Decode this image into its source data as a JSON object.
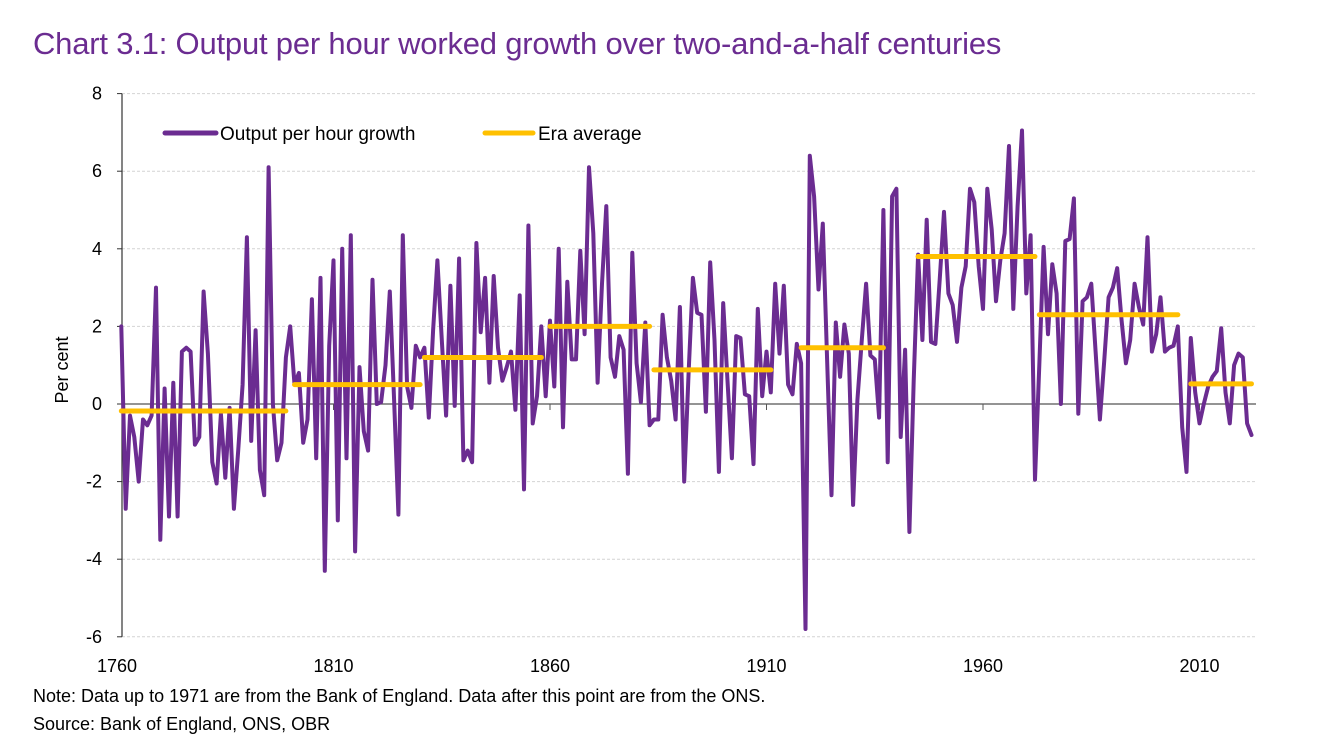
{
  "title": "Chart 3.1: Output per hour worked growth over two-and-a-half centuries",
  "note": "Note: Data up to 1971 are from the Bank of England. Data after this point are from the ONS.",
  "source": "Source: Bank of England, ONS, OBR",
  "colors": {
    "series": "#6B2C91",
    "era": "#FFC000",
    "title": "#6B2C91"
  },
  "chart_data": {
    "type": "line",
    "title": "Chart 3.1: Output per hour worked growth over two-and-a-half centuries",
    "xlabel": "",
    "ylabel": "Per cent",
    "xlim": [
      1760,
      2023
    ],
    "ylim": [
      -6,
      8
    ],
    "xticks": [
      "1760",
      "1810",
      "1860",
      "1910",
      "1960",
      "2010"
    ],
    "yticks": [
      "-6",
      "-4",
      "-2",
      "0",
      "2",
      "4",
      "6",
      "8"
    ],
    "grid": "horizontal dashed",
    "legend_position": "top-left",
    "legend": [
      "Output per hour growth",
      "Era average"
    ],
    "series": [
      {
        "name": "Output per hour growth",
        "start_year": 1761,
        "values": [
          2.0,
          -2.7,
          -0.3,
          -0.85,
          -2.0,
          -0.4,
          -0.55,
          -0.3,
          3.0,
          -3.5,
          0.4,
          -2.9,
          0.55,
          -2.9,
          1.35,
          1.45,
          1.35,
          -1.05,
          -0.85,
          2.9,
          1.3,
          -1.5,
          -2.05,
          -0.25,
          -1.9,
          -0.1,
          -2.7,
          -1.2,
          0.5,
          4.3,
          -0.95,
          1.9,
          -1.7,
          -2.35,
          6.1,
          0.0,
          -1.45,
          -1.0,
          1.2,
          2.0,
          0.5,
          0.8,
          -1.0,
          -0.4,
          2.7,
          -1.4,
          3.25,
          -4.3,
          1.5,
          3.7,
          -3.0,
          4.0,
          -1.4,
          4.35,
          -3.8,
          0.95,
          -0.7,
          -1.2,
          3.2,
          0.0,
          0.05,
          1.0,
          2.9,
          0.1,
          -2.85,
          4.35,
          0.45,
          -0.1,
          1.5,
          1.2,
          1.45,
          -0.35,
          1.9,
          3.7,
          1.65,
          -0.3,
          3.05,
          -0.05,
          3.75,
          -1.45,
          -1.2,
          -1.5,
          4.15,
          1.85,
          3.25,
          0.55,
          3.3,
          1.45,
          0.6,
          0.95,
          1.35,
          -0.15,
          2.8,
          -2.2,
          4.6,
          -0.5,
          0.2,
          2.0,
          0.2,
          2.15,
          0.45,
          4.0,
          -0.6,
          3.15,
          1.15,
          1.15,
          3.95,
          1.8,
          6.1,
          4.4,
          0.55,
          3.1,
          5.1,
          1.2,
          0.7,
          1.75,
          1.4,
          -1.8,
          3.9,
          1.05,
          0.05,
          2.1,
          -0.55,
          -0.4,
          -0.4,
          2.3,
          1.2,
          0.6,
          -0.4,
          2.5,
          -2.0,
          0.8,
          3.25,
          2.35,
          2.3,
          -0.2,
          3.65,
          1.65,
          -1.75,
          2.6,
          0.6,
          -1.4,
          1.75,
          1.7,
          0.25,
          0.2,
          -1.55,
          2.45,
          0.2,
          1.35,
          0.3,
          3.1,
          1.3,
          3.05,
          0.5,
          0.25,
          1.55,
          1.05,
          -5.8,
          6.4,
          5.35,
          2.95,
          4.65,
          1.15,
          -2.35,
          2.1,
          0.7,
          2.05,
          1.3,
          -2.6,
          0.1,
          1.65,
          3.1,
          1.25,
          1.15,
          -0.35,
          5.0,
          -1.5,
          5.35,
          5.55,
          -0.85,
          1.4,
          -3.3,
          0.6,
          3.85,
          1.65,
          4.75,
          1.6,
          1.55,
          3.2,
          4.95,
          2.85,
          2.55,
          1.6,
          3.0,
          3.55,
          5.55,
          5.2,
          3.55,
          2.45,
          5.55,
          4.5,
          2.65,
          3.7,
          4.4,
          6.65,
          2.45,
          5.1,
          7.05,
          2.85,
          4.35,
          -1.95,
          1.0,
          4.05,
          1.8,
          3.6,
          2.85,
          0.0,
          4.2,
          4.25,
          5.3,
          -0.25,
          2.65,
          2.75,
          3.1,
          1.35,
          -0.4,
          1.1,
          2.75,
          3.0,
          3.5,
          2.15,
          1.05,
          1.65,
          3.1,
          2.5,
          2.05,
          4.3,
          1.35,
          1.8,
          2.75,
          1.35,
          1.45,
          1.5,
          2.0,
          -0.6,
          -1.75,
          1.7,
          0.3,
          -0.5,
          0.0,
          0.45,
          0.7,
          0.85,
          1.95,
          0.3,
          -0.5,
          1.0,
          1.3,
          1.2,
          -0.5,
          -0.8
        ]
      },
      {
        "name": "Era average",
        "segments": [
          {
            "start": 1761,
            "end": 1799,
            "value": -0.18
          },
          {
            "start": 1801,
            "end": 1830,
            "value": 0.5
          },
          {
            "start": 1831,
            "end": 1858,
            "value": 1.2
          },
          {
            "start": 1860,
            "end": 1883,
            "value": 2.0
          },
          {
            "start": 1884,
            "end": 1911,
            "value": 0.88
          },
          {
            "start": 1918,
            "end": 1937,
            "value": 1.45
          },
          {
            "start": 1945,
            "end": 1972,
            "value": 3.8
          },
          {
            "start": 1973,
            "end": 2005,
            "value": 2.3
          },
          {
            "start": 2008,
            "end": 2022,
            "value": 0.52
          }
        ]
      }
    ]
  }
}
